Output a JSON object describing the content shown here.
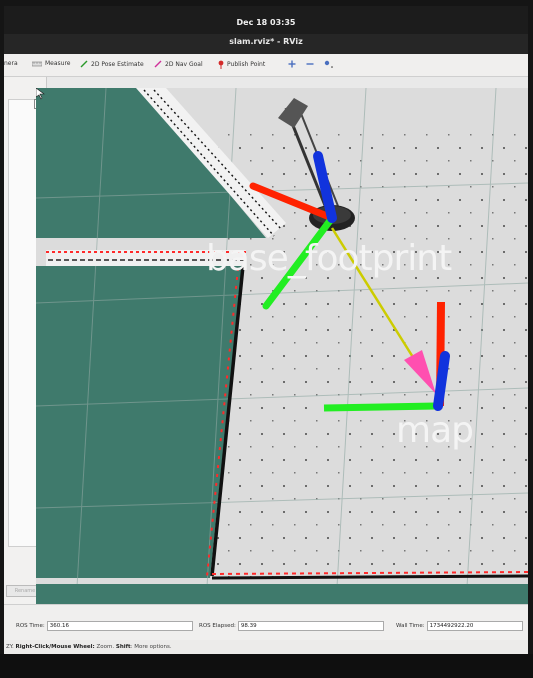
{
  "topbar": {
    "clock": "Dec 18  03:35"
  },
  "window": {
    "title": "slam.rviz* - RViz"
  },
  "toolbar": {
    "items": [
      {
        "label": "Camera",
        "icon": "camera-icon"
      },
      {
        "label": "Measure",
        "icon": "ruler-icon"
      },
      {
        "label": "2D Pose Estimate",
        "icon": "green-arrow-icon"
      },
      {
        "label": "2D Nav Goal",
        "icon": "pink-arrow-icon"
      },
      {
        "label": "Publish Point",
        "icon": "map-pin-icon"
      }
    ],
    "camera_label_visible": "nera",
    "zoom_in_icon": "plus-icon",
    "zoom_out_icon": "minus-icon",
    "extra_icon": "dot-target-icon"
  },
  "sidepanel": {
    "rename_label": "Rename"
  },
  "viewport": {
    "frames": [
      {
        "name": "base_footprint"
      },
      {
        "name": "map"
      }
    ],
    "colors": {
      "free_space": "#dcdcdc",
      "unknown_space": "#3f7a6c",
      "obstacle": "#111111",
      "laser": "#ff2a2a",
      "axis_x": "#ff2200",
      "axis_y": "#22ee22",
      "axis_z": "#1133dd",
      "tf_link": "#cccc00",
      "tf_arrow": "#ff4fb0"
    }
  },
  "timebar": {
    "ros_time_label": "ROS Time:",
    "ros_time_value": "360.16",
    "ros_elapsed_label": "ROS Elapsed:",
    "ros_elapsed_value": "98.39",
    "wall_time_label": "Wall Time:",
    "wall_time_value": "1734492922.20"
  },
  "statusbar": {
    "prefix": "ZY.",
    "bold1": "Right-Click/Mouse Wheel:",
    "text1": " Zoom. ",
    "bold2": "Shift",
    "text2": ": More options."
  }
}
